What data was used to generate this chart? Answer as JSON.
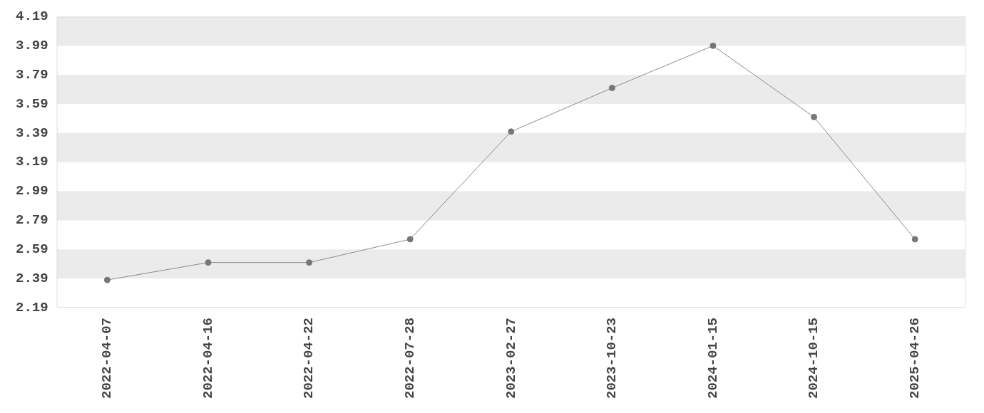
{
  "chart_data": {
    "type": "line",
    "categories": [
      "2022-04-07",
      "2022-04-16",
      "2022-04-22",
      "2022-07-28",
      "2023-02-27",
      "2023-10-23",
      "2024-01-15",
      "2024-10-15",
      "2025-04-26"
    ],
    "series": [
      {
        "color": "#777777",
        "values": [
          2.38,
          2.5,
          2.5,
          2.66,
          3.4,
          3.7,
          3.99,
          3.5,
          2.66
        ]
      }
    ],
    "ylim": [
      2.19,
      4.19
    ],
    "yticks": [
      2.19,
      2.39,
      2.59,
      2.79,
      2.99,
      3.19,
      3.39,
      3.59,
      3.79,
      3.99,
      4.19
    ],
    "bands": [
      {
        "axis": "y",
        "from": 2.39,
        "to": 2.59,
        "color": "#ebebeb"
      },
      {
        "axis": "y",
        "from": 2.79,
        "to": 2.99,
        "color": "#ebebeb"
      },
      {
        "axis": "y",
        "from": 3.19,
        "to": 3.39,
        "color": "#ebebeb"
      },
      {
        "axis": "y",
        "from": 3.59,
        "to": 3.79,
        "color": "#ebebeb"
      },
      {
        "axis": "y",
        "from": 3.99,
        "to": 4.19,
        "color": "#ebebeb"
      }
    ],
    "grid": false,
    "legend": false,
    "marker": "circle",
    "line_style": "solid"
  }
}
